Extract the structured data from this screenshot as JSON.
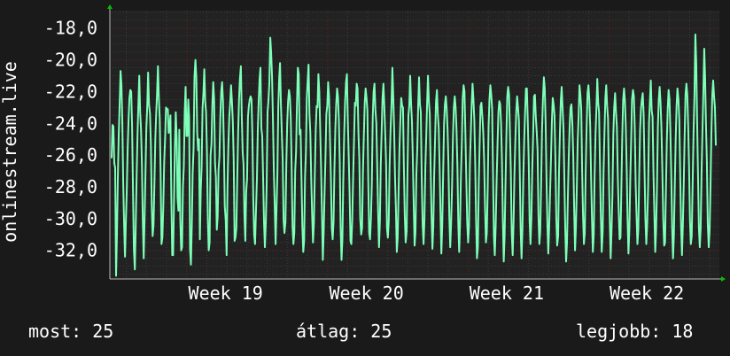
{
  "chart_data": {
    "type": "line",
    "title": "",
    "ylabel": "onlinestream.live",
    "xlabel": "",
    "ylim": [
      -33.8,
      -16.9
    ],
    "yticks": [
      "-18,0",
      "-20,0",
      "-22,0",
      "-24,0",
      "-26,0",
      "-28,0",
      "-30,0",
      "-32,0"
    ],
    "ytick_values": [
      -18,
      -20,
      -22,
      -24,
      -26,
      -28,
      -30,
      -32
    ],
    "xticks": [
      "Week 19",
      "Week 20",
      "Week 21",
      "Week 22"
    ],
    "xlim": [
      0,
      1
    ],
    "xtick_positions": [
      0.126,
      0.357,
      0.587,
      0.817
    ],
    "grid": true,
    "series": [
      {
        "values": [
          -26.2,
          -24.1,
          -24.2,
          -26.5,
          -26.8,
          -33.6,
          -31.0,
          -27.5,
          -24.8,
          -22.7,
          -20.7,
          -21.6,
          -24.0,
          -27.8,
          -30.4,
          -32.4,
          -30.2,
          -28.2,
          -25.6,
          -23.8,
          -22.4,
          -21.9,
          -22.0,
          -24.2,
          -28.1,
          -31.9,
          -33.2,
          -30.5,
          -27.4,
          -24.8,
          -22.8,
          -21.0,
          -23.3,
          -24.4,
          -26.6,
          -30.2,
          -32.5,
          -30.0,
          -27.1,
          -24.3,
          -22.9,
          -20.8,
          -22.8,
          -23.4,
          -25.3,
          -29.2,
          -31.1,
          -30.4,
          -27.8,
          -25.0,
          -23.4,
          -22.1,
          -20.4,
          -22.4,
          -23.7,
          -27.2,
          -31.6,
          -31.2,
          -29.3,
          -26.5,
          -24.9,
          -23.0,
          -23.1,
          -23.1,
          -24.6,
          -24.3,
          -23.5,
          -28.7,
          -32.3,
          -32.3,
          -29.0,
          -25.5,
          -23.3,
          -24.9,
          -28.7,
          -29.5,
          -24.4,
          -30.0,
          -32.0,
          -31.8,
          -28.0,
          -26.7,
          -23.3,
          -21.7,
          -24.8,
          -24.8,
          -22.5,
          -23.7,
          -31.9,
          -32.9,
          -30.4,
          -27.1,
          -25.6,
          -21.1,
          -20.0,
          -21.1,
          -24.6,
          -25.7,
          -25.0,
          -31.3,
          -28.2,
          -26.7,
          -23.1,
          -22.1,
          -20.6,
          -22.6,
          -23.3,
          -25.8,
          -30.0,
          -32.0,
          -31.5,
          -26.0,
          -25.3,
          -22.8,
          -21.4,
          -22.5,
          -26.5,
          -27.4,
          -30.7,
          -29.9,
          -26.9,
          -26.1,
          -23.6,
          -22.0,
          -21.4,
          -22.6,
          -25.4,
          -29.2,
          -30.1,
          -32.3,
          -28.0,
          -25.4,
          -23.6,
          -22.7,
          -21.6,
          -22.6,
          -23.9,
          -26.3,
          -31.4,
          -31.2,
          -30.6,
          -27.5,
          -24.6,
          -22.5,
          -21.2,
          -20.4,
          -23.5,
          -25.8,
          -26.6,
          -29.8,
          -31.4,
          -28.3,
          -27.5,
          -23.6,
          -22.9,
          -22.5,
          -22.3,
          -22.5,
          -24.8,
          -28.8,
          -31.0,
          -31.6,
          -29.4,
          -27.5,
          -24.4,
          -22.6,
          -21.2,
          -20.5,
          -24.3,
          -24.8,
          -27.4,
          -30.2,
          -31.8,
          -30.3,
          -27.9,
          -23.3,
          -22.6,
          -21.5,
          -18.6,
          -19.6,
          -21.1,
          -23.8,
          -27.0,
          -29.2,
          -31.6,
          -29.4,
          -27.2,
          -23.0,
          -21.2,
          -20.2,
          -22.8,
          -24.6,
          -26.3,
          -30.1,
          -30.9,
          -30.2,
          -26.5,
          -24.0,
          -22.6,
          -21.9,
          -22.3,
          -23.6,
          -26.8,
          -30.5,
          -31.6,
          -30.9,
          -27.0,
          -25.8,
          -22.8,
          -20.5,
          -20.9,
          -24.7,
          -24.4,
          -27.5,
          -30.5,
          -32.1,
          -31.4,
          -27.4,
          -25.8,
          -22.4,
          -21.3,
          -20.3,
          -23.4,
          -24.6,
          -27.5,
          -29.7,
          -31.5,
          -30.3,
          -27.4,
          -24.4,
          -22.9,
          -23.0,
          -20.9,
          -22.0,
          -24.3,
          -26.8,
          -29.6,
          -32.6,
          -30.8,
          -28.3,
          -26.1,
          -23.4,
          -22.9,
          -21.4,
          -22.3,
          -24.8,
          -27.4,
          -30.6,
          -31.3,
          -30.2,
          -26.9,
          -24.4,
          -22.8,
          -21.8,
          -22.3,
          -23.8,
          -26.5,
          -30.6,
          -32.6,
          -31.3,
          -27.5,
          -24.7,
          -22.7,
          -21.4,
          -20.9,
          -23.8,
          -26.0,
          -28.4,
          -31.4,
          -31.6,
          -30.1,
          -27.4,
          -25.1,
          -22.7,
          -22.9,
          -21.5,
          -21.8,
          -24.6,
          -26.3,
          -30.0,
          -31.0,
          -30.6,
          -27.0,
          -24.8,
          -22.7,
          -21.8,
          -22.4,
          -23.2,
          -27.7,
          -30.9,
          -31.3,
          -30.0,
          -27.8,
          -23.7,
          -22.0,
          -21.5,
          -23.1,
          -24.0,
          -26.8,
          -29.6,
          -31.8,
          -30.2,
          -26.6,
          -24.5,
          -22.4,
          -21.5,
          -22.9,
          -24.6,
          -26.5,
          -30.6,
          -31.2,
          -30.2,
          -26.6,
          -24.5,
          -22.8,
          -20.5,
          -22.3,
          -24.4,
          -27.4,
          -29.4,
          -32.1,
          -31.2,
          -28.4,
          -25.6,
          -23.8,
          -22.4,
          -22.9,
          -23.0,
          -26.8,
          -29.8,
          -31.5,
          -30.8,
          -26.9,
          -23.5,
          -22.9,
          -21.0,
          -22.7,
          -23.9,
          -26.3,
          -29.2,
          -31.7,
          -30.8,
          -27.2,
          -25.6,
          -22.9,
          -21.1,
          -22.8,
          -23.3,
          -27.7,
          -30.4,
          -31.6,
          -30.1,
          -26.8,
          -24.9,
          -22.7,
          -21.0,
          -22.6,
          -23.4,
          -26.8,
          -29.8,
          -31.9,
          -30.5,
          -27.2,
          -25.0,
          -22.7,
          -21.9,
          -23.4,
          -24.3,
          -26.7,
          -29.6,
          -32.2,
          -30.4,
          -27.2,
          -24.1,
          -22.8,
          -22.3,
          -23.1,
          -24.4,
          -26.6,
          -29.9,
          -31.8,
          -30.3,
          -27.9,
          -24.8,
          -23.0,
          -22.3,
          -23.0,
          -24.4,
          -26.7,
          -30.3,
          -32.1,
          -30.2,
          -27.3,
          -25.3,
          -22.4,
          -21.6,
          -22.0,
          -24.6,
          -27.4,
          -30.3,
          -31.5,
          -30.5,
          -26.6,
          -24.7,
          -22.8,
          -21.5,
          -22.5,
          -23.8,
          -26.5,
          -30.1,
          -32.5,
          -31.8,
          -27.9,
          -25.3,
          -22.9,
          -22.7,
          -23.6,
          -24.6,
          -26.4,
          -29.3,
          -31.5,
          -30.9,
          -28.1,
          -24.2,
          -22.5,
          -21.6,
          -22.2,
          -23.1,
          -27.1,
          -31.1,
          -32.3,
          -30.5,
          -27.8,
          -25.3,
          -23.3,
          -22.6,
          -22.8,
          -24.0,
          -26.4,
          -30.0,
          -32.7,
          -31.1,
          -27.8,
          -24.8,
          -22.3,
          -21.7,
          -22.2,
          -24.5,
          -27.0,
          -30.9,
          -32.3,
          -30.2,
          -27.2,
          -25.1,
          -23.3,
          -22.3,
          -23.0,
          -23.8,
          -27.1,
          -30.7,
          -32.5,
          -30.7,
          -27.4,
          -25.1,
          -23.3,
          -21.8,
          -21.8,
          -24.0,
          -26.4,
          -30.1,
          -31.6,
          -30.0,
          -26.9,
          -24.7,
          -22.3,
          -22.2,
          -23.6,
          -24.5,
          -25.7,
          -29.8,
          -31.6,
          -30.8,
          -27.9,
          -24.5,
          -22.4,
          -21.1,
          -21.8,
          -24.0,
          -27.6,
          -30.4,
          -32.2,
          -30.5,
          -28.4,
          -26.3,
          -24.0,
          -22.4,
          -22.8,
          -23.5,
          -26.2,
          -29.9,
          -31.7,
          -31.1,
          -27.1,
          -24.6,
          -22.6,
          -21.7,
          -23.0,
          -24.3,
          -27.4,
          -30.6,
          -32.7,
          -31.5,
          -28.6,
          -26.1,
          -24.2,
          -23.0,
          -22.8,
          -24.1,
          -26.1,
          -29.4,
          -32.0,
          -30.5,
          -28.0,
          -25.1,
          -23.6,
          -21.6,
          -22.2,
          -23.1,
          -27.0,
          -29.8,
          -31.6,
          -30.9,
          -27.1,
          -24.4,
          -22.1,
          -21.6,
          -22.5,
          -24.2,
          -27.4,
          -30.0,
          -32.1,
          -31.0,
          -27.3,
          -24.7,
          -23.1,
          -21.2,
          -22.7,
          -23.3,
          -26.6,
          -29.8,
          -32.1,
          -30.8,
          -27.0,
          -24.6,
          -22.4,
          -21.6,
          -22.9,
          -23.7,
          -27.4,
          -30.1,
          -32.5,
          -30.7,
          -28.5,
          -24.7,
          -23.0,
          -22.1,
          -23.3,
          -24.2,
          -27.5,
          -29.6,
          -31.3,
          -31.2,
          -28.0,
          -24.8,
          -22.5,
          -21.8,
          -22.6,
          -24.2,
          -26.9,
          -30.1,
          -32.2,
          -30.7,
          -27.6,
          -25.2,
          -22.5,
          -21.9,
          -22.3,
          -24.3,
          -27.8,
          -29.8,
          -31.6,
          -30.7,
          -27.4,
          -24.4,
          -23.1,
          -22.5,
          -22.1,
          -23.4,
          -26.8,
          -30.0,
          -31.6,
          -30.4,
          -28.0,
          -24.0,
          -22.6,
          -21.3,
          -23.2,
          -23.6,
          -27.1,
          -29.6,
          -32.1,
          -30.7,
          -27.9,
          -24.2,
          -22.5,
          -21.7,
          -22.7,
          -24.3,
          -26.9,
          -30.1,
          -31.7,
          -31.5,
          -28.1,
          -25.1,
          -23.1,
          -21.9,
          -22.5,
          -24.5,
          -27.2,
          -30.6,
          -32.5,
          -31.0,
          -27.8,
          -25.0,
          -22.9,
          -21.8,
          -22.5,
          -23.8,
          -27.3,
          -30.5,
          -32.3,
          -30.4,
          -27.8,
          -24.8,
          -22.2,
          -21.5,
          -22.2,
          -24.2,
          -26.8,
          -30.1,
          -31.6,
          -31.1,
          -27.9,
          -24.5,
          -22.2,
          -18.4,
          -20.2,
          -23.9,
          -27.3,
          -30.6,
          -31.8,
          -30.6,
          -27.1,
          -24.5,
          -22.1,
          -19.3,
          -21.1,
          -24.1,
          -26.4,
          -30.3,
          -31.8,
          -30.7,
          -28.0,
          -24.6,
          -22.2,
          -21.3,
          -22.3,
          -23.0,
          -25.4
        ]
      }
    ]
  },
  "legend": {
    "current_label": "most:",
    "current_value": "25",
    "average_label": "átlag:",
    "average_value": "25",
    "best_label": "legjobb:",
    "best_value": "18"
  },
  "colors": {
    "background": "#1a1a1a",
    "plot_background": "#222222",
    "grid_minor": "#3a3a3a",
    "grid_major": "#5a2020",
    "line": "#7dffb8",
    "axis_arrow": "#00c000",
    "text": "#ffffff"
  }
}
